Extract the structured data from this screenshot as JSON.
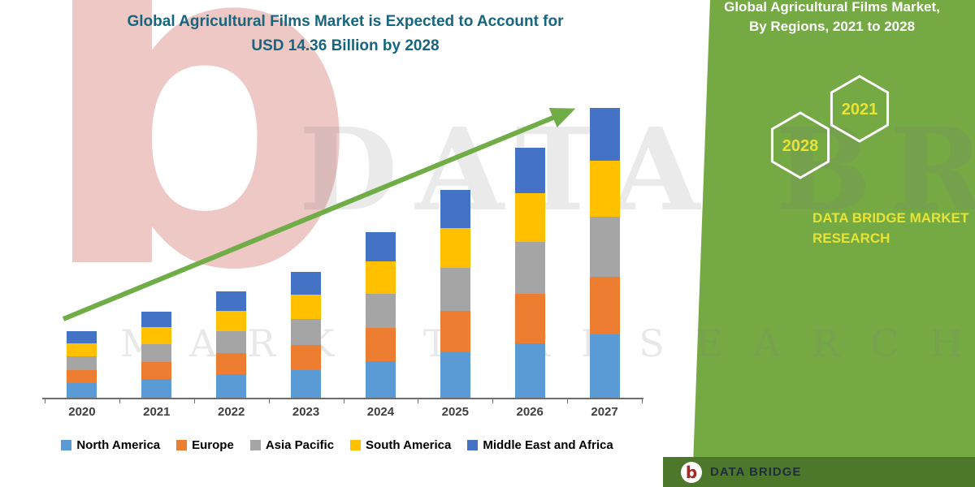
{
  "chart": {
    "title_line1": "Global Agricultural Films Market is Expected to Account for",
    "title_line2": "USD 14.36 Billion by 2028"
  },
  "chart_data": {
    "type": "bar",
    "stacked": true,
    "title": "Global Agricultural Films Market is Expected to Account for USD 14.36 Billion by 2028",
    "xlabel": "",
    "ylabel": "",
    "unit": "USD Billion",
    "ylim": [
      0,
      14
    ],
    "value_axis_visible": false,
    "grid": false,
    "legend_position": "bottom",
    "categories": [
      "2020",
      "2021",
      "2022",
      "2023",
      "2024",
      "2025",
      "2026",
      "2027"
    ],
    "series": [
      {
        "name": "North America",
        "color": "#5B9BD5",
        "values": [
          0.65,
          0.85,
          1.05,
          1.25,
          1.65,
          2.05,
          2.45,
          2.85
        ]
      },
      {
        "name": "Europe",
        "color": "#ED7D31",
        "values": [
          0.6,
          0.78,
          0.96,
          1.14,
          1.5,
          1.88,
          2.26,
          2.62
        ]
      },
      {
        "name": "Asia Pacific",
        "color": "#A5A5A5",
        "values": [
          0.62,
          0.81,
          0.99,
          1.18,
          1.55,
          1.94,
          2.34,
          2.71
        ]
      },
      {
        "name": "South America",
        "color": "#FFC000",
        "values": [
          0.58,
          0.75,
          0.93,
          1.1,
          1.45,
          1.81,
          2.18,
          2.53
        ]
      },
      {
        "name": "Middle East and Africa",
        "color": "#4472C4",
        "values": [
          0.55,
          0.71,
          0.87,
          1.03,
          1.35,
          1.72,
          2.07,
          2.39
        ]
      }
    ],
    "annotations": [
      "upward green trend arrow across bars"
    ],
    "projected_total_2028": 14.36
  },
  "right_panel": {
    "title_line1": "Global Agricultural Films Market,",
    "title_line2": "By Regions, 2021 to 2028",
    "hexagon_left": "2028",
    "hexagon_right": "2021",
    "brand_line1": "DATA BRIDGE MARKET",
    "brand_line2": "RESEARCH"
  },
  "footer": {
    "logo_letter": "b",
    "brand": "DATA BRIDGE"
  },
  "watermark": {
    "logo_letter": "b",
    "line1": "DATA BRIDGE",
    "line2": "MARKET RESEARCH"
  },
  "colors": {
    "panel_green": "#74a943",
    "footer_green": "#4d772b",
    "title_teal": "#17657f",
    "arrow_green": "#70AD47",
    "hexagon_year_yellow": "#e8e337"
  }
}
